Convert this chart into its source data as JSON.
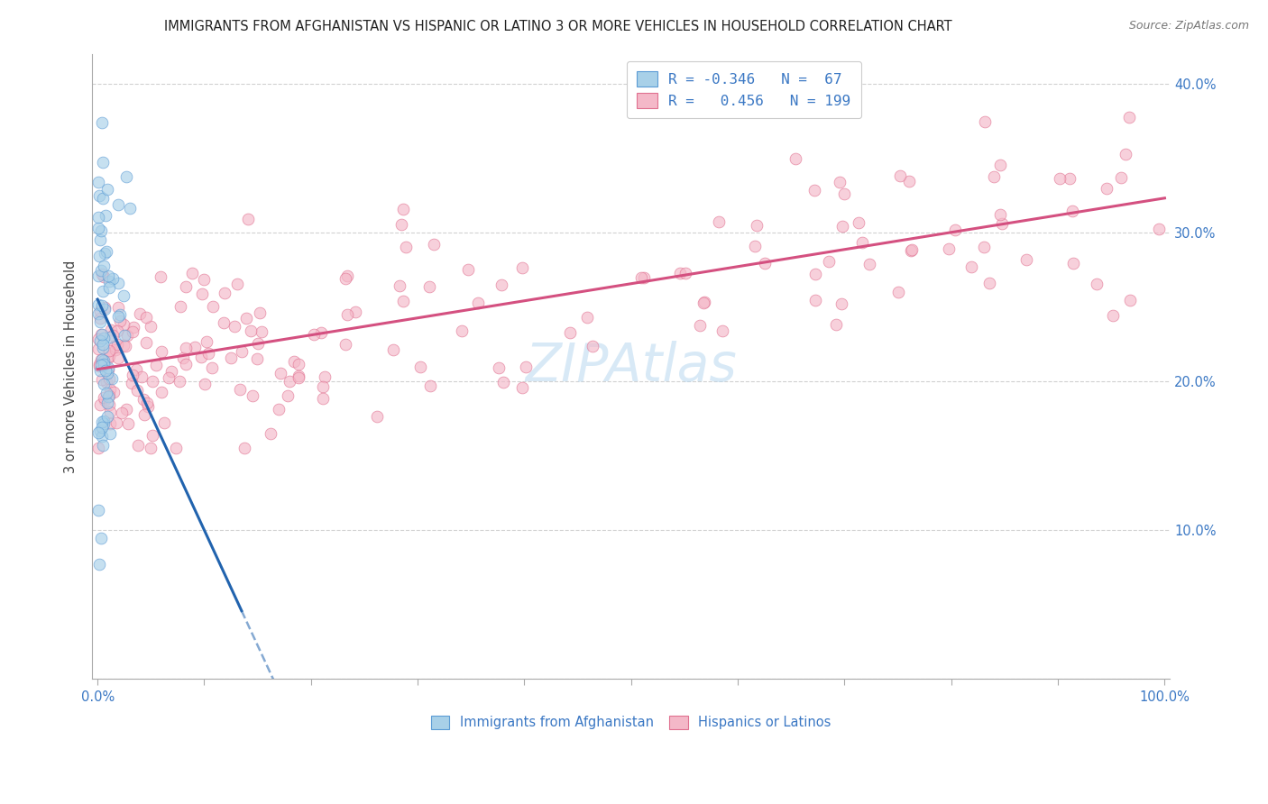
{
  "title": "IMMIGRANTS FROM AFGHANISTAN VS HISPANIC OR LATINO 3 OR MORE VEHICLES IN HOUSEHOLD CORRELATION CHART",
  "source": "Source: ZipAtlas.com",
  "ylabel": "3 or more Vehicles in Household",
  "R1": -0.346,
  "N1": 67,
  "R2": 0.456,
  "N2": 199,
  "color_blue_fill": "#a8d0e8",
  "color_blue_edge": "#5b9bd5",
  "color_blue_line": "#2163ae",
  "color_pink_fill": "#f4b8c8",
  "color_pink_edge": "#e07090",
  "color_pink_line": "#d45080",
  "legend1_label": "Immigrants from Afghanistan",
  "legend2_label": "Hispanics or Latinos",
  "watermark_text": "ZIPAtlas",
  "watermark_color": "#b8d8f0",
  "ylim_min": 0.0,
  "ylim_max": 0.42,
  "xlim_min": -0.005,
  "xlim_max": 1.005,
  "yticks": [
    0.0,
    0.1,
    0.2,
    0.3,
    0.4
  ],
  "ytick_labels": [
    "",
    "10.0%",
    "20.0%",
    "30.0%",
    "40.0%"
  ],
  "xticks_minor": [
    0.0,
    0.1,
    0.2,
    0.3,
    0.4,
    0.5,
    0.6,
    0.7,
    0.8,
    0.9,
    1.0
  ],
  "blue_line_x0": 0.0,
  "blue_line_y0": 0.255,
  "blue_line_slope": -1.55,
  "blue_line_solid_end": 0.135,
  "blue_line_dash_end": 0.215,
  "pink_line_x0": 0.0,
  "pink_line_y0": 0.208,
  "pink_line_slope": 0.115
}
